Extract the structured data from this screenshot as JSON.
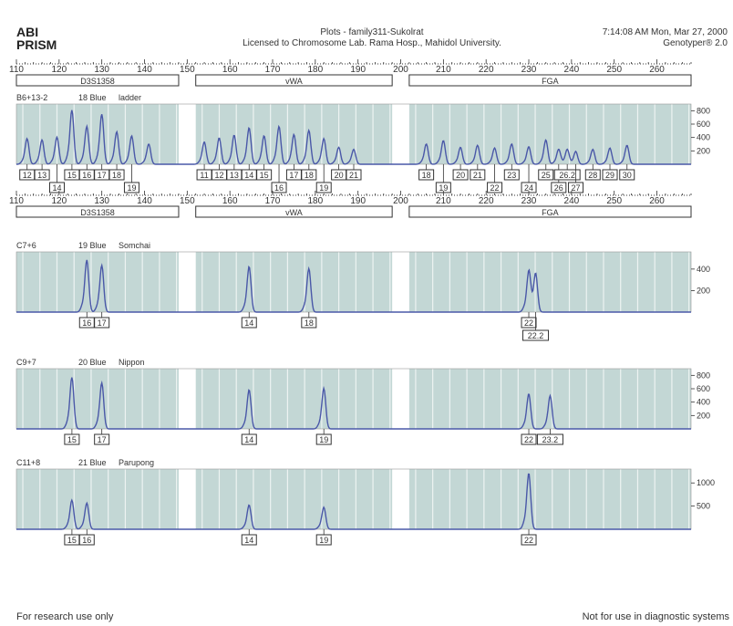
{
  "header": {
    "logo_line1": "ABI",
    "logo_line2": "PRISM",
    "title": "Plots - family311-Sukolrat",
    "license": "Licensed to Chromosome Lab. Rama Hosp., Mahidol University.",
    "timestamp": "7:14:08 AM Mon, Mar 27, 2000",
    "software": "Genotyper® 2.0"
  },
  "footer": {
    "left": "For research use only",
    "right": "Not for use in diagnostic systems"
  },
  "colors": {
    "trace": "#4a58a8",
    "shade": "#c3d7d5",
    "text": "#333333"
  },
  "chart_data": {
    "type": "line",
    "x_ticks": [
      110,
      120,
      130,
      140,
      150,
      160,
      170,
      180,
      190,
      200,
      210,
      220,
      230,
      240,
      250,
      260
    ],
    "xlim": [
      110,
      268
    ],
    "loci": [
      {
        "name": "D3S1358",
        "range": [
          110,
          148
        ]
      },
      {
        "name": "vWA",
        "range": [
          152,
          198
        ]
      },
      {
        "name": "FGA",
        "range": [
          202,
          268
        ]
      }
    ],
    "samples": [
      {
        "id": "B6+13-2",
        "lane": "18 Blue",
        "name": "ladder",
        "y_ticks": [
          800,
          600,
          400,
          200
        ],
        "ymax": 900,
        "peaks": [
          {
            "x": 112.5,
            "h": 380,
            "label": "12",
            "row": 0
          },
          {
            "x": 116,
            "h": 360,
            "label": "13",
            "row": 0
          },
          {
            "x": 119.5,
            "h": 400,
            "label": "14",
            "row": 1
          },
          {
            "x": 123,
            "h": 800,
            "label": "15",
            "row": 0
          },
          {
            "x": 126.5,
            "h": 560,
            "label": "16",
            "row": 0
          },
          {
            "x": 130,
            "h": 740,
            "label": "17",
            "row": 0
          },
          {
            "x": 133.5,
            "h": 480,
            "label": "18",
            "row": 0
          },
          {
            "x": 137,
            "h": 420,
            "label": "19",
            "row": 1
          },
          {
            "x": 141,
            "h": 300,
            "label": "",
            "row": 0
          },
          {
            "x": 154,
            "h": 330,
            "label": "11",
            "row": 0
          },
          {
            "x": 157.5,
            "h": 390,
            "label": "12",
            "row": 0
          },
          {
            "x": 161,
            "h": 430,
            "label": "13",
            "row": 0
          },
          {
            "x": 164.5,
            "h": 540,
            "label": "14",
            "row": 0
          },
          {
            "x": 168,
            "h": 420,
            "label": "15",
            "row": 0
          },
          {
            "x": 171.5,
            "h": 560,
            "label": "16",
            "row": 1
          },
          {
            "x": 175,
            "h": 440,
            "label": "17",
            "row": 0
          },
          {
            "x": 178.5,
            "h": 500,
            "label": "18",
            "row": 0
          },
          {
            "x": 182,
            "h": 380,
            "label": "19",
            "row": 1
          },
          {
            "x": 185.5,
            "h": 250,
            "label": "20",
            "row": 0
          },
          {
            "x": 189,
            "h": 220,
            "label": "21",
            "row": 0
          },
          {
            "x": 206,
            "h": 300,
            "label": "18",
            "row": 0
          },
          {
            "x": 210,
            "h": 350,
            "label": "19",
            "row": 1
          },
          {
            "x": 214,
            "h": 250,
            "label": "20",
            "row": 0
          },
          {
            "x": 218,
            "h": 280,
            "label": "21",
            "row": 0
          },
          {
            "x": 222,
            "h": 240,
            "label": "22",
            "row": 1
          },
          {
            "x": 226,
            "h": 300,
            "label": "23",
            "row": 0
          },
          {
            "x": 230,
            "h": 260,
            "label": "24",
            "row": 1
          },
          {
            "x": 234,
            "h": 360,
            "label": "25",
            "row": 0
          },
          {
            "x": 237,
            "h": 220,
            "label": "26",
            "row": 1
          },
          {
            "x": 239,
            "h": 220,
            "label": "26.2",
            "row": 0
          },
          {
            "x": 241,
            "h": 190,
            "label": "27",
            "row": 1
          },
          {
            "x": 245,
            "h": 220,
            "label": "28",
            "row": 0
          },
          {
            "x": 249,
            "h": 240,
            "label": "29",
            "row": 0
          },
          {
            "x": 253,
            "h": 280,
            "label": "30",
            "row": 0
          }
        ]
      },
      {
        "id": "C7+6",
        "lane": "19 Blue",
        "name": "Somchai",
        "y_ticks": [
          400,
          200
        ],
        "ymax": 560,
        "peaks": [
          {
            "x": 126.5,
            "h": 480,
            "label": "16",
            "row": 0
          },
          {
            "x": 130,
            "h": 430,
            "label": "17",
            "row": 0
          },
          {
            "x": 164.5,
            "h": 420,
            "label": "14",
            "row": 0
          },
          {
            "x": 178.5,
            "h": 400,
            "label": "18",
            "row": 0
          },
          {
            "x": 230,
            "h": 370,
            "label": "22",
            "row": 0
          },
          {
            "x": 231.6,
            "h": 360,
            "label": "22.2",
            "row": 1
          }
        ]
      },
      {
        "id": "C9+7",
        "lane": "20 Blue",
        "name": "Nippon",
        "y_ticks": [
          800,
          600,
          400,
          200
        ],
        "ymax": 900,
        "peaks": [
          {
            "x": 123,
            "h": 760,
            "label": "15",
            "row": 0
          },
          {
            "x": 130,
            "h": 680,
            "label": "17",
            "row": 0
          },
          {
            "x": 164.5,
            "h": 580,
            "label": "14",
            "row": 0
          },
          {
            "x": 182,
            "h": 600,
            "label": "19",
            "row": 0
          },
          {
            "x": 230,
            "h": 520,
            "label": "22",
            "row": 0
          },
          {
            "x": 235,
            "h": 490,
            "label": "23.2",
            "row": 0
          }
        ]
      },
      {
        "id": "C11+8",
        "lane": "21 Blue",
        "name": "Parupong",
        "y_ticks": [
          1000,
          500
        ],
        "ymax": 1300,
        "peaks": [
          {
            "x": 123,
            "h": 620,
            "label": "15",
            "row": 0
          },
          {
            "x": 126.5,
            "h": 560,
            "label": "16",
            "row": 0
          },
          {
            "x": 164.5,
            "h": 520,
            "label": "14",
            "row": 0
          },
          {
            "x": 182,
            "h": 470,
            "label": "19",
            "row": 0
          },
          {
            "x": 230,
            "h": 1200,
            "label": "22",
            "row": 0
          }
        ]
      }
    ]
  }
}
